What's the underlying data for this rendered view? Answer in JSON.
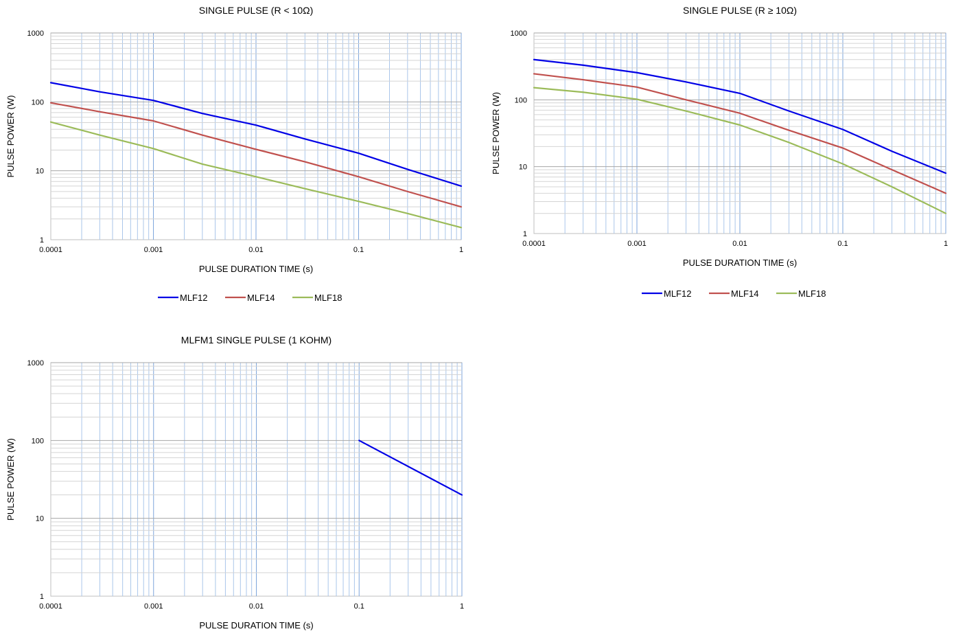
{
  "chart_data": [
    {
      "type": "line",
      "title": "SINGLE PULSE (R < 10Ω)",
      "xlabel": "PULSE DURATION TIME (s)",
      "ylabel": "PULSE POWER (W)",
      "xscale": "log",
      "yscale": "log",
      "xlim": [
        0.0001,
        1
      ],
      "ylim": [
        1,
        1000
      ],
      "xticks": [
        "0.0001",
        "0.001",
        "0.01",
        "0.1",
        "1"
      ],
      "yticks": [
        "1",
        "10",
        "100",
        "1000"
      ],
      "grid": true,
      "legend": "bottom",
      "series": [
        {
          "name": "MLF12",
          "color": "#0000e6",
          "points": [
            [
              0.0001,
              190
            ],
            [
              0.0003,
              140
            ],
            [
              0.001,
              105
            ],
            [
              0.003,
              68
            ],
            [
              0.01,
              46
            ],
            [
              0.03,
              29
            ],
            [
              0.1,
              18
            ],
            [
              0.3,
              10.5
            ],
            [
              1,
              6
            ]
          ]
        },
        {
          "name": "MLF14",
          "color": "#c0504d",
          "points": [
            [
              0.0001,
              97
            ],
            [
              0.0003,
              72
            ],
            [
              0.001,
              53
            ],
            [
              0.003,
              33
            ],
            [
              0.01,
              20.5
            ],
            [
              0.03,
              13.5
            ],
            [
              0.1,
              8.2
            ],
            [
              0.3,
              5
            ],
            [
              1,
              3
            ]
          ]
        },
        {
          "name": "MLF18",
          "color": "#9bbb59",
          "points": [
            [
              0.0001,
              51
            ],
            [
              0.0003,
              33
            ],
            [
              0.001,
              21
            ],
            [
              0.003,
              12.5
            ],
            [
              0.01,
              8.2
            ],
            [
              0.03,
              5.5
            ],
            [
              0.1,
              3.6
            ],
            [
              0.3,
              2.4
            ],
            [
              1,
              1.5
            ]
          ]
        }
      ]
    },
    {
      "type": "line",
      "title": "SINGLE PULSE (R ≥ 10Ω)",
      "xlabel": "PULSE DURATION TIME (s)",
      "ylabel": "PULSE POWER (W)",
      "xscale": "log",
      "yscale": "log",
      "xlim": [
        0.0001,
        1
      ],
      "ylim": [
        1,
        1000
      ],
      "xticks": [
        "0.0001",
        "0.001",
        "0.01",
        "0.1",
        "1"
      ],
      "yticks": [
        "1",
        "10",
        "100",
        "1000"
      ],
      "grid": true,
      "legend": "bottom",
      "series": [
        {
          "name": "MLF12",
          "color": "#0000e6",
          "points": [
            [
              0.0001,
              400
            ],
            [
              0.0003,
              330
            ],
            [
              0.001,
              255
            ],
            [
              0.003,
              185
            ],
            [
              0.01,
              125
            ],
            [
              0.03,
              68
            ],
            [
              0.1,
              36
            ],
            [
              0.3,
              17
            ],
            [
              1,
              8
            ]
          ]
        },
        {
          "name": "MLF14",
          "color": "#c0504d",
          "points": [
            [
              0.0001,
              245
            ],
            [
              0.0003,
              200
            ],
            [
              0.001,
              155
            ],
            [
              0.003,
              100
            ],
            [
              0.01,
              63
            ],
            [
              0.03,
              35
            ],
            [
              0.1,
              19
            ],
            [
              0.3,
              9
            ],
            [
              1,
              4
            ]
          ]
        },
        {
          "name": "MLF18",
          "color": "#9bbb59",
          "points": [
            [
              0.0001,
              152
            ],
            [
              0.0003,
              130
            ],
            [
              0.001,
              102
            ],
            [
              0.003,
              68
            ],
            [
              0.01,
              42
            ],
            [
              0.03,
              23
            ],
            [
              0.1,
              11
            ],
            [
              0.3,
              5
            ],
            [
              1,
              2
            ]
          ]
        }
      ]
    },
    {
      "type": "line",
      "title": "MLFM1 SINGLE PULSE (1 KOHM)",
      "xlabel": "PULSE DURATION TIME (s)",
      "ylabel": "PULSE POWER (W)",
      "xscale": "log",
      "yscale": "log",
      "xlim": [
        0.0001,
        1
      ],
      "ylim": [
        1,
        1000
      ],
      "xticks": [
        "0.0001",
        "0.001",
        "0.01",
        "0.1",
        "1"
      ],
      "yticks": [
        "1",
        "10",
        "100",
        "1000"
      ],
      "grid": true,
      "legend": "none",
      "series": [
        {
          "color": "#0000e6",
          "points": [
            [
              0.1,
              100
            ],
            [
              1,
              20
            ]
          ]
        }
      ]
    }
  ]
}
